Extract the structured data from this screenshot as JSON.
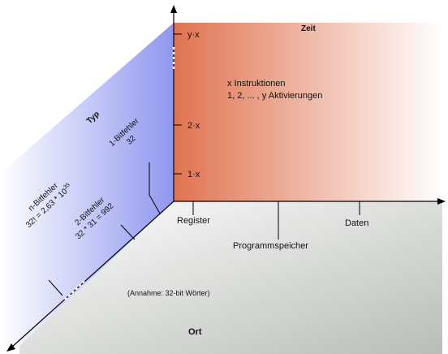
{
  "diagram": {
    "time_plane": {
      "title": "Zeit",
      "ticks": [
        "1·x",
        "2·x",
        "y·x"
      ],
      "note_line1": "x Instruktionen",
      "note_line2": "1, 2, ... , y Aktivierungen"
    },
    "type_plane": {
      "title": "Typ",
      "one_bit_label": "1-Bitfehler",
      "one_bit_count": "32",
      "two_bit_label": "2-Bitfehler",
      "two_bit_count": "32 * 31 = 992",
      "n_bit_label": "n-Bitfehler",
      "n_bit_count": "32! = 2,63 * 10",
      "n_bit_exponent": "35"
    },
    "location_plane": {
      "title": "Ort",
      "categories": [
        "Register",
        "Programmspeicher",
        "Daten"
      ],
      "assumption": "(Annahme: 32-bit Wörter)"
    },
    "colors": {
      "time_plane_start": "#e07350",
      "time_plane_end": "#ffffff",
      "type_plane_start": "#8f97ef",
      "type_plane_end": "#ffffff",
      "location_plane_start": "#ffffff",
      "location_plane_end": "#b9bdb8"
    }
  }
}
